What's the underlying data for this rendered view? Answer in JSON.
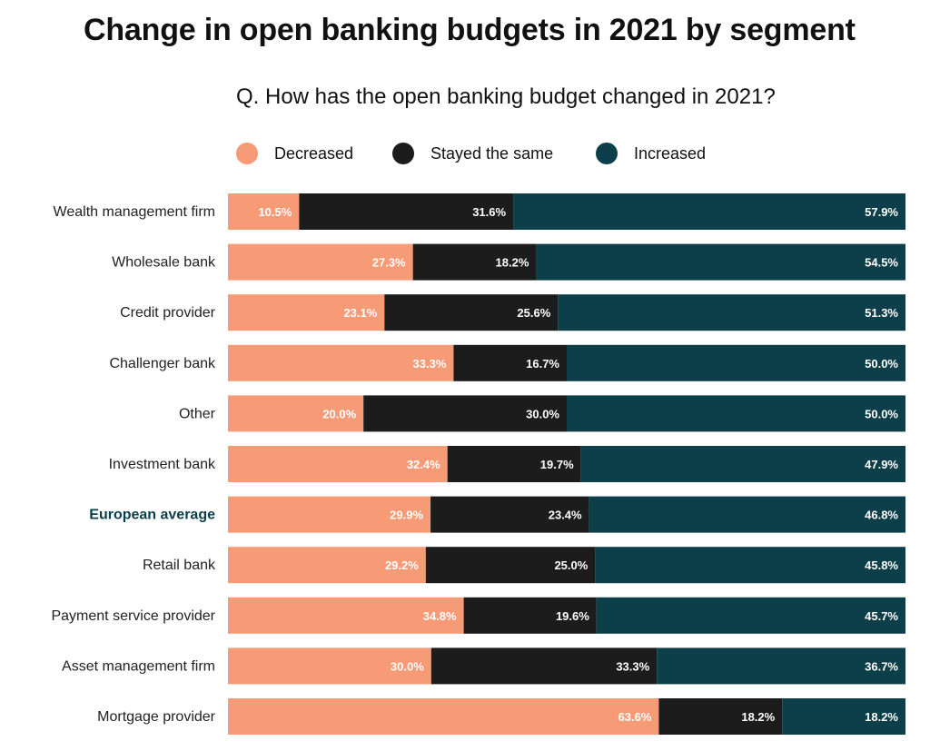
{
  "chart_data": {
    "type": "bar",
    "orientation": "horizontal",
    "stacked": true,
    "title": "Change in open banking budgets in 2021 by segment",
    "subtitle": "Q. How has the open banking budget changed in 2021?",
    "legend_position": "top",
    "categories": [
      "Wealth management firm",
      "Wholesale bank",
      "Credit provider",
      "Challenger bank",
      "Other",
      "Investment bank",
      "European average",
      "Retail bank",
      "Payment service provider",
      "Asset management firm",
      "Mortgage provider"
    ],
    "highlighted_category": "European average",
    "series": [
      {
        "name": "Decreased",
        "color": "#f79a76",
        "values": [
          10.5,
          27.3,
          23.1,
          33.3,
          20.0,
          32.4,
          29.9,
          29.2,
          34.8,
          30.0,
          63.6
        ],
        "labels": [
          "10.5%",
          "27.3%",
          "23.1%",
          "33.3%",
          "20.0%",
          "32.4%",
          "29.9%",
          "29.2%",
          "34.8%",
          "30.0%",
          "63.6%"
        ]
      },
      {
        "name": "Stayed the same",
        "color": "#1c1c1c",
        "values": [
          31.6,
          18.2,
          25.6,
          16.7,
          30.0,
          19.7,
          23.4,
          25.0,
          19.6,
          33.3,
          18.2
        ],
        "labels": [
          "31.6%",
          "18.2%",
          "25.6%",
          "16.7%",
          "30.0%",
          "19.7%",
          "23.4%",
          "25.0%",
          "19.6%",
          "33.3%",
          "18.2%"
        ]
      },
      {
        "name": "Increased",
        "color": "#0c3f4a",
        "values": [
          57.9,
          54.5,
          51.3,
          50.0,
          50.0,
          47.9,
          46.8,
          45.8,
          45.7,
          36.7,
          18.2
        ],
        "labels": [
          "57.9%",
          "54.5%",
          "51.3%",
          "50.0%",
          "50.0%",
          "47.9%",
          "46.8%",
          "45.8%",
          "45.7%",
          "36.7%",
          "18.2%"
        ]
      }
    ],
    "xlim": [
      0,
      100
    ],
    "grid": false
  }
}
